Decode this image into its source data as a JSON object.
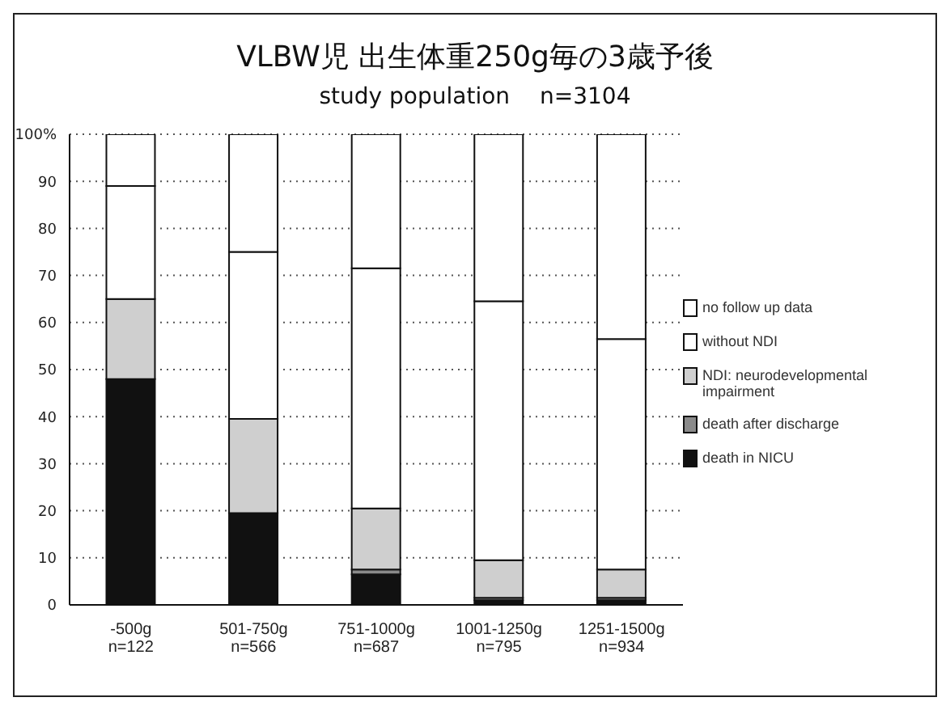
{
  "chart_data": {
    "type": "bar",
    "title": "VLBW児 出生体重250g毎の3歳予後",
    "subtitle": "study population　 n=3104",
    "categories": [
      "-500g\nn=122",
      "501-750g\nn=566",
      "751-1000g\nn=687",
      "1001-1250g\nn=795",
      "1251-1500g\nn=934"
    ],
    "stacked": true,
    "series": [
      {
        "name": "death in NICU",
        "color": "#111111",
        "values": [
          48,
          19.5,
          6.5,
          1,
          1
        ]
      },
      {
        "name": "death after discharge",
        "color": "#8a8a8a",
        "values": [
          0,
          0,
          1,
          0.5,
          0.5
        ]
      },
      {
        "name": "NDI: neurodevelopmental impairment",
        "color": "#cfcfcf",
        "values": [
          17,
          20,
          13,
          8,
          6
        ]
      },
      {
        "name": "without NDI",
        "color": "#ffffff",
        "values": [
          24,
          35.5,
          51,
          55,
          49
        ]
      },
      {
        "name": "no follow up data",
        "color": "#ffffff",
        "values": [
          11,
          25,
          28.5,
          35.5,
          43.5
        ]
      }
    ],
    "ylim": [
      0,
      100
    ],
    "yticks": [
      0,
      10,
      20,
      30,
      40,
      50,
      60,
      70,
      80,
      90,
      {
        "value": 100,
        "label": "100%"
      }
    ],
    "grid": "y",
    "legend": "right"
  }
}
